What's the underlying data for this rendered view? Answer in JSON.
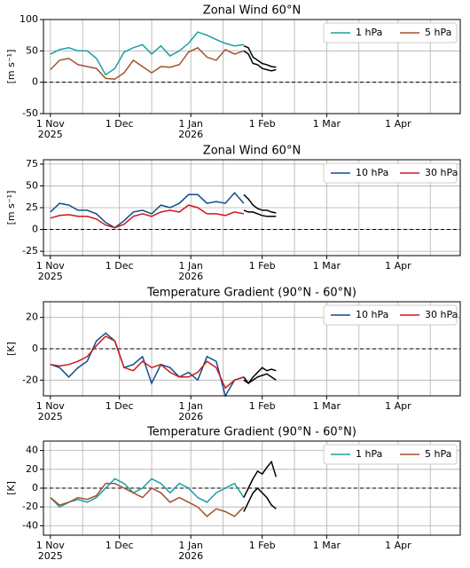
{
  "chart_data": [
    {
      "type": "line",
      "title": "Zonal Wind 60°N",
      "y_label": "[m s⁻¹]",
      "xlim": [
        -3,
        178
      ],
      "ylim": [
        -50,
        100
      ],
      "yticks": [
        -50,
        0,
        50,
        100
      ],
      "xticks": [
        {
          "value": 0,
          "label": "1 Nov\n2025"
        },
        {
          "value": 30,
          "label": "1 Dec"
        },
        {
          "value": 61,
          "label": "1 Jan\n2026"
        },
        {
          "value": 92,
          "label": "1 Feb"
        },
        {
          "value": 120,
          "label": "1 Mar"
        },
        {
          "value": 151,
          "label": "1 Apr"
        }
      ],
      "xminor": [
        14,
        44,
        75,
        106,
        134,
        165
      ],
      "grid": true,
      "reference_line": 0,
      "legend": "upper right",
      "series": [
        {
          "name": "1 hPa",
          "color": "#1a9fa6",
          "x": [
            0,
            4,
            8,
            12,
            16,
            20,
            24,
            28,
            32,
            36,
            40,
            44,
            48,
            52,
            56,
            60,
            64,
            68,
            72,
            76,
            80,
            84
          ],
          "values": [
            45,
            52,
            55,
            50,
            50,
            38,
            12,
            22,
            48,
            55,
            60,
            45,
            58,
            42,
            50,
            62,
            80,
            75,
            68,
            62,
            58,
            60
          ]
        },
        {
          "name": "5 hPa",
          "color": "#a0522d",
          "x": [
            0,
            4,
            8,
            12,
            16,
            20,
            24,
            28,
            32,
            36,
            40,
            44,
            48,
            52,
            56,
            60,
            64,
            68,
            72,
            76,
            80,
            84
          ],
          "values": [
            20,
            35,
            38,
            28,
            25,
            22,
            6,
            5,
            15,
            35,
            25,
            15,
            25,
            24,
            28,
            48,
            55,
            40,
            35,
            52,
            45,
            50
          ]
        },
        {
          "color": "#000000",
          "x": [
            84,
            86,
            88,
            90,
            92,
            94,
            96,
            98
          ],
          "values": [
            58,
            55,
            40,
            35,
            30,
            28,
            25,
            24
          ]
        },
        {
          "color": "#000000",
          "x": [
            84,
            86,
            88,
            90,
            92,
            94,
            96,
            98
          ],
          "values": [
            50,
            45,
            30,
            28,
            22,
            20,
            18,
            20
          ]
        }
      ]
    },
    {
      "type": "line",
      "title": "Zonal Wind 60°N",
      "y_label": "[m s⁻¹]",
      "xlim": [
        -3,
        178
      ],
      "ylim": [
        -30,
        80
      ],
      "yticks": [
        -25,
        0,
        25,
        50,
        75
      ],
      "xticks": [
        {
          "value": 0,
          "label": "1 Nov\n2025"
        },
        {
          "value": 30,
          "label": "1 Dec"
        },
        {
          "value": 61,
          "label": "1 Jan\n2026"
        },
        {
          "value": 92,
          "label": "1 Feb"
        },
        {
          "value": 120,
          "label": "1 Mar"
        },
        {
          "value": 151,
          "label": "1 Apr"
        }
      ],
      "xminor": [
        14,
        44,
        75,
        106,
        134,
        165
      ],
      "grid": true,
      "reference_line": 0,
      "legend": "upper right",
      "series": [
        {
          "name": "10 hPa",
          "color": "#0d4f8b",
          "x": [
            0,
            4,
            8,
            12,
            16,
            20,
            24,
            28,
            32,
            36,
            40,
            44,
            48,
            52,
            56,
            60,
            64,
            68,
            72,
            76,
            80,
            84
          ],
          "values": [
            20,
            30,
            28,
            22,
            22,
            18,
            8,
            2,
            10,
            20,
            22,
            18,
            28,
            25,
            30,
            40,
            40,
            30,
            32,
            30,
            42,
            30
          ]
        },
        {
          "name": "30 hPa",
          "color": "#cc1a1a",
          "x": [
            0,
            4,
            8,
            12,
            16,
            20,
            24,
            28,
            32,
            36,
            40,
            44,
            48,
            52,
            56,
            60,
            64,
            68,
            72,
            76,
            80,
            84
          ],
          "values": [
            13,
            16,
            17,
            15,
            15,
            12,
            5,
            2,
            6,
            15,
            18,
            15,
            20,
            22,
            20,
            28,
            25,
            18,
            18,
            16,
            20,
            18
          ]
        },
        {
          "color": "#000000",
          "x": [
            84,
            86,
            88,
            90,
            92,
            94,
            96,
            98
          ],
          "values": [
            40,
            35,
            28,
            24,
            22,
            22,
            20,
            19
          ]
        },
        {
          "color": "#000000",
          "x": [
            84,
            86,
            88,
            90,
            92,
            94,
            96,
            98
          ],
          "values": [
            22,
            20,
            20,
            18,
            16,
            15,
            15,
            15
          ]
        }
      ]
    },
    {
      "type": "line",
      "title": "Temperature Gradient (90°N - 60°N)",
      "y_label": "[K]",
      "xlim": [
        -3,
        178
      ],
      "ylim": [
        -30,
        30
      ],
      "yticks": [
        -20,
        0,
        20
      ],
      "xticks": [
        {
          "value": 0,
          "label": "1 Nov\n2025"
        },
        {
          "value": 30,
          "label": "1 Dec"
        },
        {
          "value": 61,
          "label": "1 Jan\n2026"
        },
        {
          "value": 92,
          "label": "1 Feb"
        },
        {
          "value": 120,
          "label": "1 Mar"
        },
        {
          "value": 151,
          "label": "1 Apr"
        }
      ],
      "xminor": [
        14,
        44,
        75,
        106,
        134,
        165
      ],
      "grid": true,
      "reference_line": 0,
      "legend": "upper right",
      "series": [
        {
          "name": "10 hPa",
          "color": "#0d4f8b",
          "x": [
            0,
            4,
            8,
            12,
            16,
            20,
            24,
            28,
            32,
            36,
            40,
            44,
            48,
            52,
            56,
            60,
            64,
            68,
            72,
            76,
            80,
            84
          ],
          "values": [
            -10,
            -12,
            -18,
            -12,
            -8,
            5,
            10,
            5,
            -12,
            -10,
            -5,
            -22,
            -10,
            -12,
            -18,
            -15,
            -20,
            -5,
            -8,
            -30,
            -20,
            -18
          ]
        },
        {
          "name": "30 hPa",
          "color": "#cc1a1a",
          "x": [
            0,
            4,
            8,
            12,
            16,
            20,
            24,
            28,
            32,
            36,
            40,
            44,
            48,
            52,
            56,
            60,
            64,
            68,
            72,
            76,
            80,
            84
          ],
          "values": [
            -10,
            -11,
            -10,
            -8,
            -5,
            2,
            8,
            5,
            -12,
            -14,
            -8,
            -12,
            -10,
            -15,
            -18,
            -18,
            -15,
            -8,
            -12,
            -25,
            -20,
            -18
          ]
        },
        {
          "color": "#000000",
          "x": [
            84,
            86,
            88,
            90,
            92,
            94,
            96,
            98
          ],
          "values": [
            -20,
            -22,
            -18,
            -15,
            -12,
            -14,
            -13,
            -14
          ]
        },
        {
          "color": "#000000",
          "x": [
            84,
            86,
            88,
            90,
            92,
            94,
            96,
            98
          ],
          "values": [
            -18,
            -22,
            -20,
            -18,
            -17,
            -16,
            -18,
            -20
          ]
        }
      ]
    },
    {
      "type": "line",
      "title": "Temperature Gradient (90°N - 60°N)",
      "y_label": "[K]",
      "xlim": [
        -3,
        178
      ],
      "ylim": [
        -50,
        50
      ],
      "yticks": [
        -40,
        -20,
        0,
        20,
        40
      ],
      "xticks": [
        {
          "value": 0,
          "label": "1 Nov\n2025"
        },
        {
          "value": 30,
          "label": "1 Dec"
        },
        {
          "value": 61,
          "label": "1 Jan\n2026"
        },
        {
          "value": 92,
          "label": "1 Feb"
        },
        {
          "value": 120,
          "label": "1 Mar"
        },
        {
          "value": 151,
          "label": "1 Apr"
        }
      ],
      "xminor": [
        14,
        44,
        75,
        106,
        134,
        165
      ],
      "grid": true,
      "reference_line": 0,
      "legend": "upper right",
      "series": [
        {
          "name": "1 hPa",
          "color": "#1a9fa6",
          "x": [
            0,
            4,
            8,
            12,
            16,
            20,
            24,
            28,
            32,
            36,
            40,
            44,
            48,
            52,
            56,
            60,
            64,
            68,
            72,
            76,
            80,
            84
          ],
          "values": [
            -10,
            -20,
            -15,
            -12,
            -15,
            -10,
            0,
            10,
            5,
            -5,
            0,
            10,
            5,
            -5,
            5,
            0,
            -10,
            -15,
            -5,
            0,
            5,
            -10
          ]
        },
        {
          "name": "5 hPa",
          "color": "#a0522d",
          "x": [
            0,
            4,
            8,
            12,
            16,
            20,
            24,
            28,
            32,
            36,
            40,
            44,
            48,
            52,
            56,
            60,
            64,
            68,
            72,
            76,
            80,
            84
          ],
          "values": [
            -10,
            -18,
            -15,
            -10,
            -12,
            -8,
            5,
            5,
            0,
            -5,
            -10,
            0,
            -5,
            -15,
            -10,
            -15,
            -20,
            -30,
            -22,
            -25,
            -30,
            -20
          ]
        },
        {
          "color": "#000000",
          "x": [
            84,
            86,
            88,
            90,
            92,
            94,
            96,
            98
          ],
          "values": [
            -10,
            0,
            10,
            18,
            15,
            22,
            28,
            12
          ]
        },
        {
          "color": "#000000",
          "x": [
            84,
            86,
            88,
            90,
            92,
            94,
            96,
            98
          ],
          "values": [
            -25,
            -15,
            -5,
            0,
            -5,
            -10,
            -18,
            -22
          ]
        }
      ]
    }
  ]
}
